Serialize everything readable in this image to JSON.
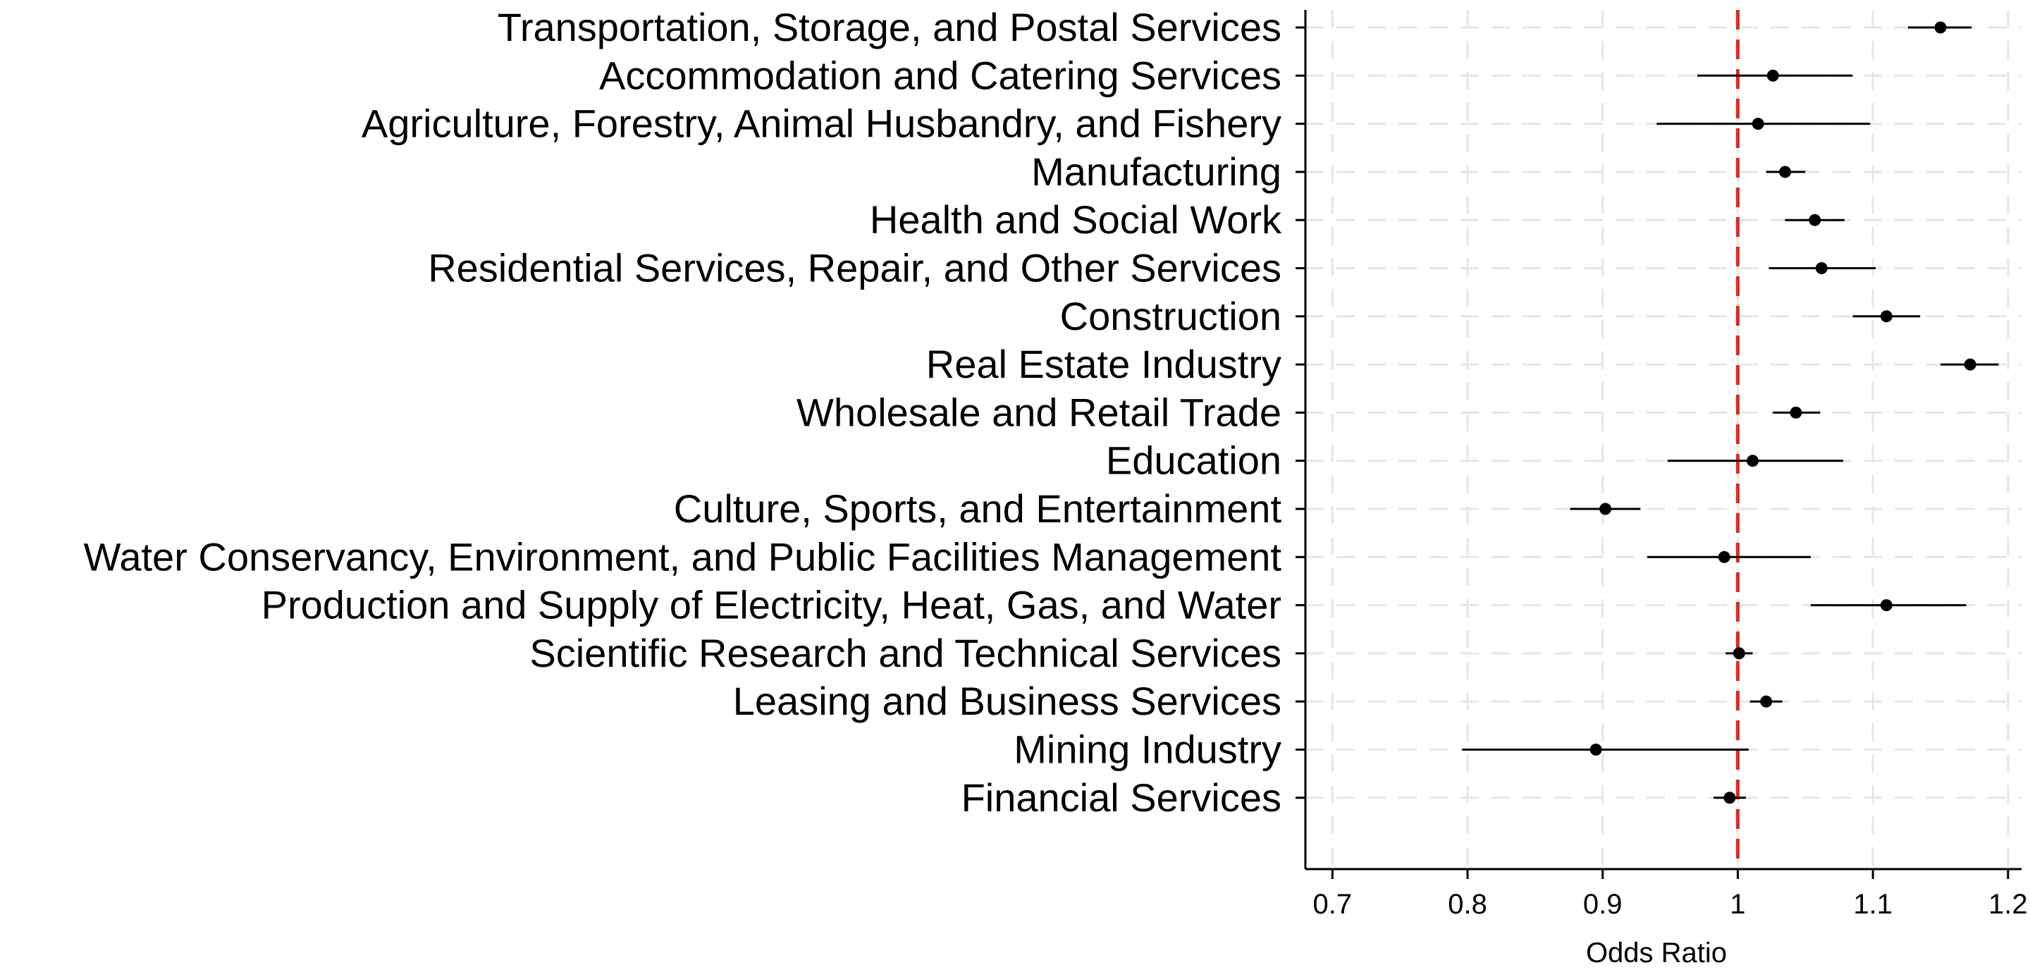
{
  "chart_data": {
    "type": "forest",
    "xlabel": "Odds Ratio",
    "xlim": [
      0.68,
      1.21
    ],
    "xticks": [
      0.7,
      0.8,
      0.9,
      1,
      1.1,
      1.2
    ],
    "xtick_labels": [
      "0.7",
      "0.8",
      "0.9",
      "1",
      "1.1",
      "1.2"
    ],
    "reference_line": 1,
    "reference_line_color": "#e8261f",
    "grid": true,
    "point_color": "#000000",
    "rows": [
      {
        "label": "Transportation, Storage, and Postal Services",
        "estimate": 1.15,
        "ci": [
          1.126,
          1.173
        ]
      },
      {
        "label": "Accommodation and Catering Services",
        "estimate": 1.026,
        "ci": [
          0.97,
          1.085
        ]
      },
      {
        "label": "Agriculture, Forestry, Animal Husbandry, and Fishery",
        "estimate": 1.015,
        "ci": [
          0.94,
          1.098
        ]
      },
      {
        "label": "Manufacturing",
        "estimate": 1.035,
        "ci": [
          1.021,
          1.05
        ]
      },
      {
        "label": "Health and Social Work",
        "estimate": 1.057,
        "ci": [
          1.035,
          1.079
        ]
      },
      {
        "label": "Residential Services, Repair, and Other Services",
        "estimate": 1.062,
        "ci": [
          1.023,
          1.102
        ]
      },
      {
        "label": "Construction",
        "estimate": 1.11,
        "ci": [
          1.085,
          1.135
        ]
      },
      {
        "label": "Real Estate Industry",
        "estimate": 1.172,
        "ci": [
          1.15,
          1.193
        ]
      },
      {
        "label": "Wholesale and Retail Trade",
        "estimate": 1.043,
        "ci": [
          1.026,
          1.061
        ]
      },
      {
        "label": "Education",
        "estimate": 1.011,
        "ci": [
          0.948,
          1.078
        ]
      },
      {
        "label": "Culture, Sports, and Entertainment",
        "estimate": 0.902,
        "ci": [
          0.876,
          0.928
        ]
      },
      {
        "label": "Water Conservancy, Environment, and Public Facilities Management",
        "estimate": 0.99,
        "ci": [
          0.933,
          1.054
        ]
      },
      {
        "label": "Production and Supply of Electricity, Heat, Gas, and Water",
        "estimate": 1.11,
        "ci": [
          1.054,
          1.169
        ]
      },
      {
        "label": "Scientific Research and Technical Services",
        "estimate": 1.001,
        "ci": [
          0.991,
          1.011
        ]
      },
      {
        "label": "Leasing and Business Services",
        "estimate": 1.021,
        "ci": [
          1.009,
          1.033
        ]
      },
      {
        "label": "Mining Industry",
        "estimate": 0.895,
        "ci": [
          0.796,
          1.008
        ]
      },
      {
        "label": "Financial Services",
        "estimate": 0.994,
        "ci": [
          0.982,
          1.006
        ]
      }
    ]
  }
}
